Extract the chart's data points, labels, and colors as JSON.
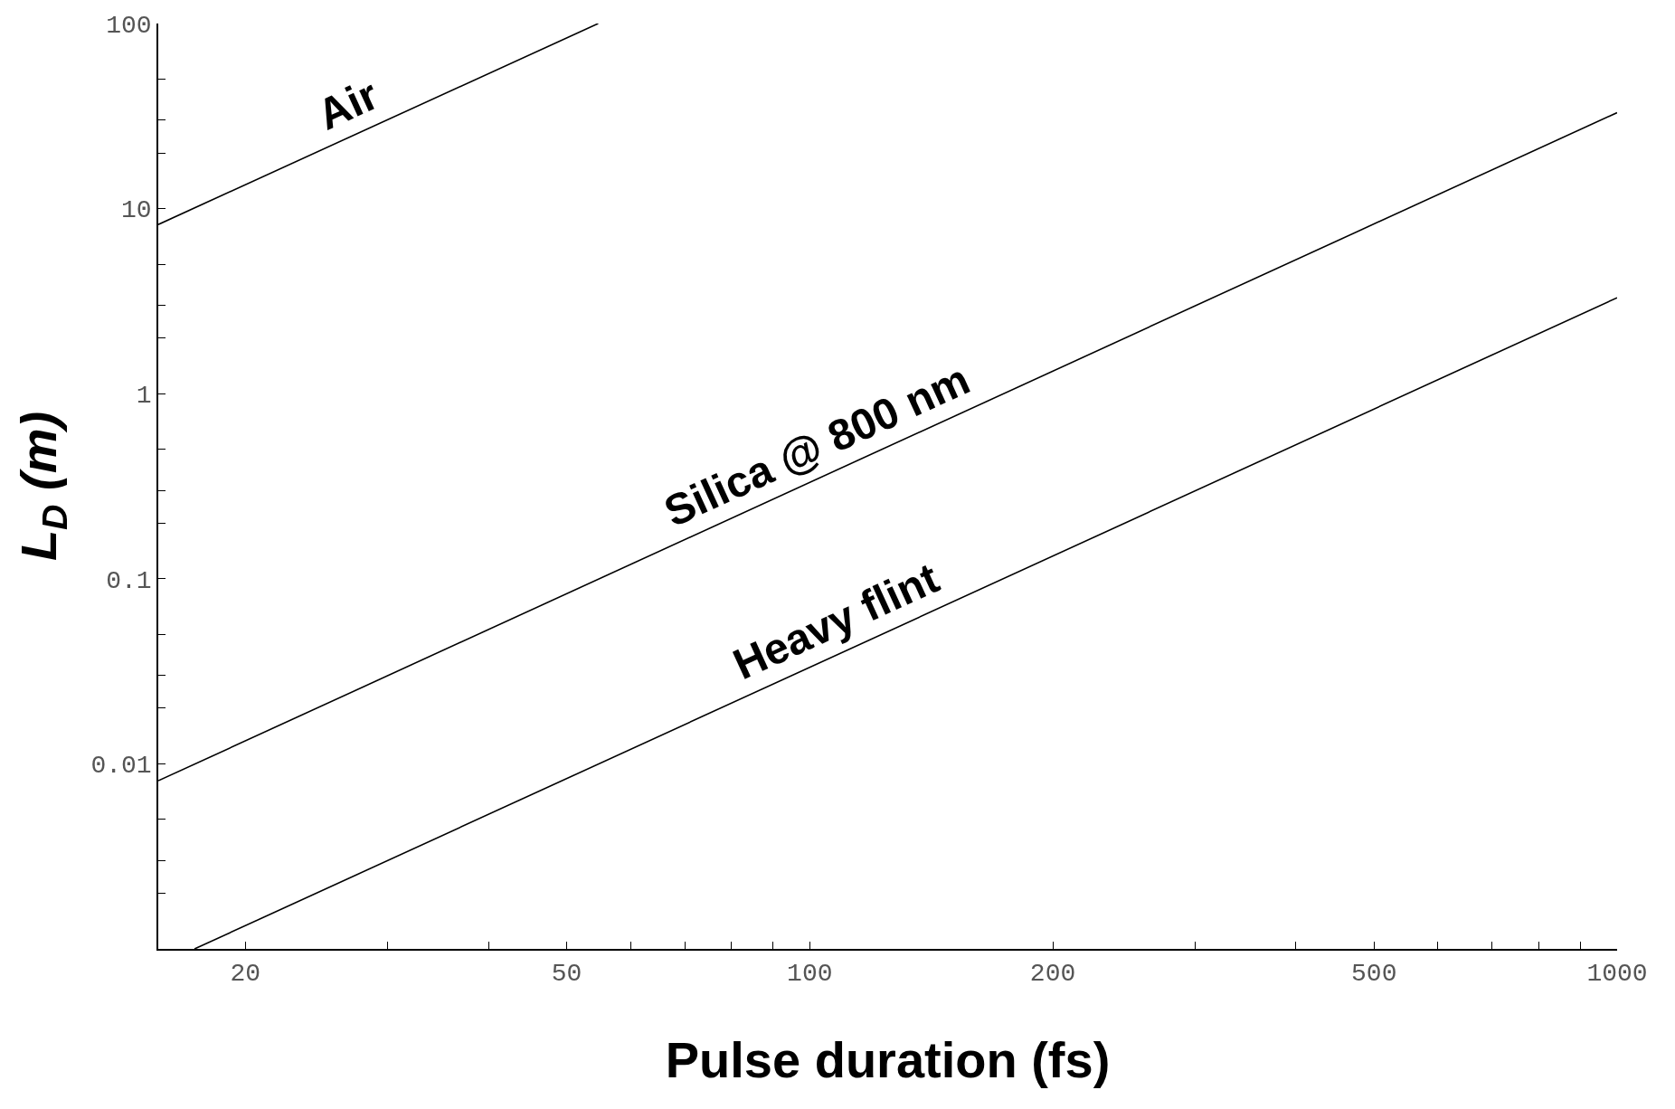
{
  "chart_data": {
    "type": "line",
    "xlabel": "Pulse duration (fs)",
    "ylabel": "L$_{D}$ (m)",
    "log": "xy",
    "legend": false,
    "marker": "none",
    "line_style": "solid",
    "xlim": [
      15.6,
      1000
    ],
    "ylim": [
      0.001,
      100
    ],
    "xticks": [
      20,
      {
        "value": 30,
        "label": null
      },
      {
        "value": 40,
        "label": null
      },
      50,
      {
        "value": 60,
        "label": null
      },
      {
        "value": 70,
        "label": null
      },
      {
        "value": 80,
        "label": null
      },
      {
        "value": 90,
        "label": null
      },
      100,
      200,
      {
        "value": 300,
        "label": null
      },
      {
        "value": 400,
        "label": null
      },
      500,
      {
        "value": 600,
        "label": null
      },
      {
        "value": 700,
        "label": null
      },
      {
        "value": 800,
        "label": null
      },
      {
        "value": 900,
        "label": null
      },
      1000
    ],
    "yticks": [
      {
        "value": 0.001,
        "label": null
      },
      {
        "value": 0.002,
        "label": null
      },
      {
        "value": 0.003,
        "label": null
      },
      {
        "value": 0.005,
        "label": null
      },
      0.01,
      {
        "value": 0.02,
        "label": null
      },
      {
        "value": 0.03,
        "label": null
      },
      {
        "value": 0.05,
        "label": null
      },
      0.1,
      {
        "value": 0.2,
        "label": null
      },
      {
        "value": 0.3,
        "label": null
      },
      {
        "value": 0.5,
        "label": null
      },
      1,
      {
        "value": 2,
        "label": null
      },
      {
        "value": 3,
        "label": null
      },
      {
        "value": 5,
        "label": null
      },
      10,
      {
        "value": 20,
        "label": null
      },
      {
        "value": 30,
        "label": null
      },
      {
        "value": 50,
        "label": null
      },
      100
    ],
    "series": [
      {
        "name": "Air",
        "color": "#000000",
        "x": [
          15.6,
          54.7
        ],
        "values": [
          8.2,
          100
        ]
      },
      {
        "name": "Silica @ 800 nm",
        "color": "#000000",
        "x": [
          15.6,
          1000
        ],
        "values": [
          0.0081,
          33
        ]
      },
      {
        "name": "Heavy flint",
        "color": "#000000",
        "x": [
          17.3,
          1000
        ],
        "values": [
          0.001,
          3.3
        ]
      }
    ]
  }
}
